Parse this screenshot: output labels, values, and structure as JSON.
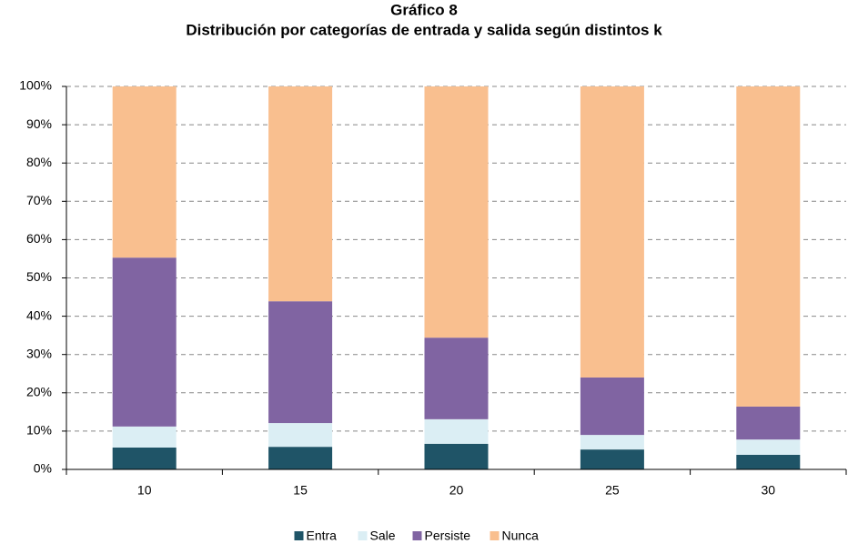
{
  "chart_data": {
    "type": "stacked_bar",
    "title": "Gráfico 8",
    "subtitle": "Distribución por categorías de entrada y salida según distintos k",
    "categories": [
      "10",
      "15",
      "20",
      "25",
      "30"
    ],
    "series": [
      {
        "name": "Entra",
        "color": "#1f5467",
        "values": [
          5.7,
          5.9,
          6.7,
          5.2,
          3.8
        ]
      },
      {
        "name": "Sale",
        "color": "#dbeef4",
        "values": [
          5.5,
          6.2,
          6.4,
          3.8,
          4.0
        ]
      },
      {
        "name": "Persiste",
        "color": "#8064a2",
        "values": [
          44.1,
          31.8,
          21.3,
          15.0,
          8.6
        ]
      },
      {
        "name": "Nunca",
        "color": "#f9bf8f",
        "values": [
          44.7,
          56.1,
          65.6,
          76.0,
          83.6
        ]
      }
    ],
    "ylim": [
      0,
      100
    ],
    "yticks": [
      {
        "value": 0,
        "label": "0%"
      },
      {
        "value": 10,
        "label": "10%"
      },
      {
        "value": 20,
        "label": "20%"
      },
      {
        "value": 30,
        "label": "30%"
      },
      {
        "value": 40,
        "label": "40%"
      },
      {
        "value": 50,
        "label": "50%"
      },
      {
        "value": 60,
        "label": "60%"
      },
      {
        "value": 70,
        "label": "70%"
      },
      {
        "value": 80,
        "label": "80%"
      },
      {
        "value": 90,
        "label": "90%"
      },
      {
        "value": 100,
        "label": "100%"
      }
    ],
    "grid": true,
    "legend": "bottom"
  }
}
